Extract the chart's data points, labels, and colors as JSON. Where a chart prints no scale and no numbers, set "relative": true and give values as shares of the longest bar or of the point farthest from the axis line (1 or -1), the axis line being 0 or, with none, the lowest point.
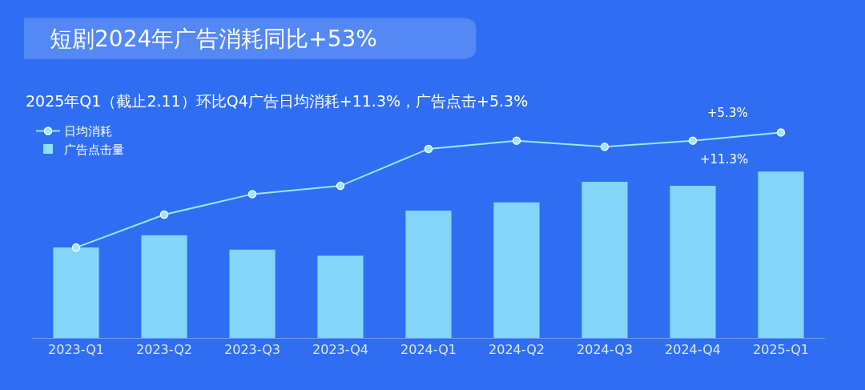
{
  "chart_data": {
    "type": "bar",
    "title": "短剧2024年广告消耗同比+53%",
    "subtitle": "2025年Q1（截止2.11）环比Q4广告日均消耗+11.3%，广告点击+5.3%",
    "categories": [
      "2023-Q1",
      "2023-Q2",
      "2023-Q3",
      "2023-Q4",
      "2024-Q1",
      "2024-Q2",
      "2024-Q3",
      "2024-Q4",
      "2025-Q1"
    ],
    "relative": true,
    "legend": "top left",
    "marker": "circle",
    "series": [
      {
        "name": "日均消耗",
        "type": "line",
        "color": "#9ee6ff",
        "values": [
          0.44,
          0.6,
          0.7,
          0.74,
          0.92,
          0.96,
          0.93,
          0.96,
          1
        ]
      },
      {
        "name": "广告点击量",
        "color": "#8ee0fb",
        "values": [
          0.44,
          0.5,
          0.43,
          0.4,
          0.62,
          0.66,
          0.76,
          0.74,
          0.81
        ]
      }
    ],
    "annotations": [
      "+5.3%",
      "+11.3%"
    ]
  }
}
